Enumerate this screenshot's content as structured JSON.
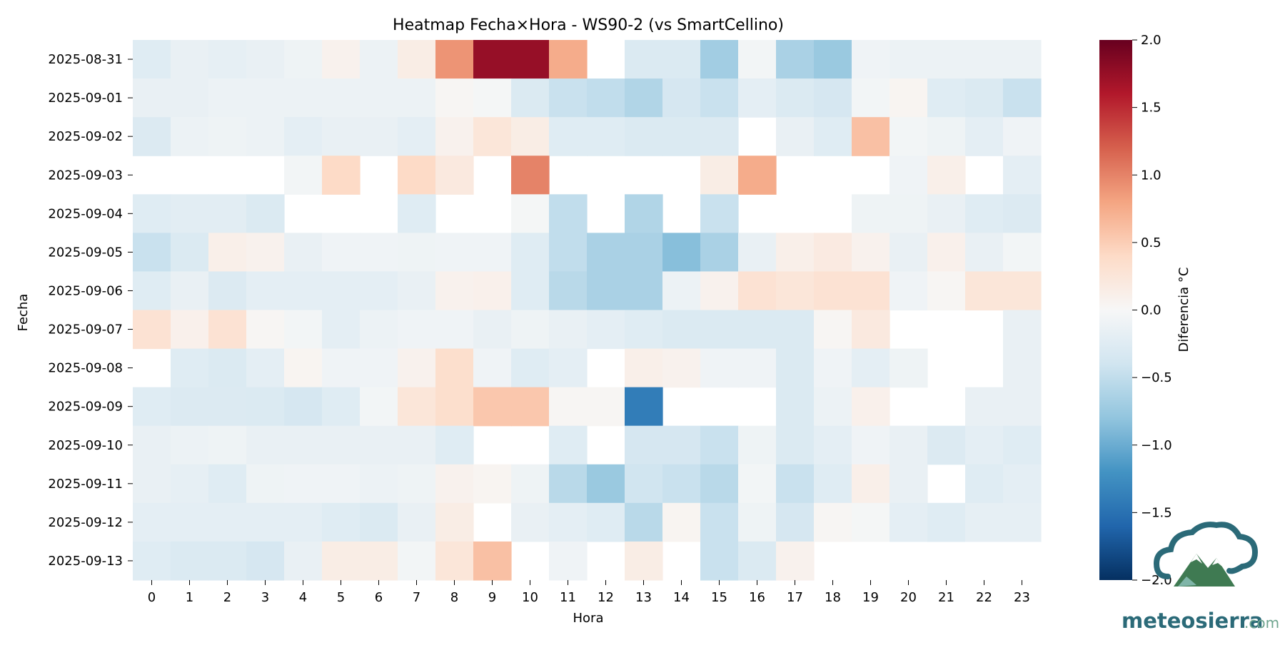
{
  "chart_data": {
    "type": "heatmap",
    "title": "Heatmap Fecha×Hora - WS90-2 (vs SmartCellino)",
    "xlabel": "Hora",
    "ylabel": "Fecha",
    "x_categories": [
      "0",
      "1",
      "2",
      "3",
      "4",
      "5",
      "6",
      "7",
      "8",
      "9",
      "10",
      "11",
      "12",
      "13",
      "14",
      "15",
      "16",
      "17",
      "18",
      "19",
      "20",
      "21",
      "22",
      "23"
    ],
    "y_categories": [
      "2025-08-31",
      "2025-09-01",
      "2025-09-02",
      "2025-09-03",
      "2025-09-04",
      "2025-09-05",
      "2025-09-06",
      "2025-09-07",
      "2025-09-08",
      "2025-09-09",
      "2025-09-10",
      "2025-09-11",
      "2025-09-12",
      "2025-09-13"
    ],
    "values": [
      [
        -0.25,
        -0.15,
        -0.18,
        -0.15,
        -0.1,
        0.08,
        -0.12,
        0.15,
        0.9,
        1.75,
        1.75,
        0.75,
        null,
        -0.3,
        -0.3,
        -0.7,
        -0.05,
        -0.65,
        -0.75,
        -0.08,
        -0.12,
        -0.12,
        -0.12,
        -0.12
      ],
      [
        -0.15,
        -0.15,
        -0.12,
        -0.12,
        -0.12,
        -0.12,
        -0.12,
        -0.12,
        0.03,
        -0.03,
        -0.3,
        -0.45,
        -0.5,
        -0.6,
        -0.35,
        -0.45,
        -0.2,
        -0.3,
        -0.35,
        -0.05,
        0.05,
        -0.25,
        -0.3,
        -0.45
      ],
      [
        -0.28,
        -0.12,
        -0.1,
        -0.12,
        -0.2,
        -0.15,
        -0.15,
        -0.2,
        0.08,
        0.25,
        0.15,
        -0.25,
        -0.25,
        -0.3,
        -0.3,
        -0.28,
        null,
        -0.15,
        -0.25,
        0.6,
        -0.05,
        -0.1,
        -0.2,
        -0.08
      ],
      [
        null,
        null,
        null,
        null,
        -0.05,
        0.4,
        null,
        0.4,
        0.2,
        null,
        1.0,
        null,
        null,
        null,
        null,
        0.15,
        0.75,
        null,
        null,
        null,
        -0.08,
        0.12,
        null,
        -0.2
      ],
      [
        -0.25,
        -0.22,
        -0.22,
        -0.3,
        null,
        null,
        null,
        -0.25,
        null,
        null,
        -0.03,
        -0.5,
        null,
        -0.6,
        null,
        -0.45,
        null,
        null,
        null,
        -0.1,
        -0.1,
        -0.15,
        -0.25,
        -0.28
      ],
      [
        -0.45,
        -0.3,
        0.12,
        0.08,
        -0.15,
        -0.08,
        -0.08,
        -0.1,
        -0.08,
        -0.08,
        -0.25,
        -0.5,
        -0.65,
        -0.65,
        -0.85,
        -0.65,
        -0.15,
        0.12,
        0.18,
        0.08,
        -0.15,
        0.1,
        -0.15,
        -0.05
      ],
      [
        -0.25,
        -0.15,
        -0.28,
        -0.2,
        -0.2,
        -0.2,
        -0.2,
        -0.15,
        0.08,
        0.1,
        -0.25,
        -0.55,
        -0.65,
        -0.65,
        -0.12,
        0.08,
        0.3,
        0.25,
        0.3,
        0.3,
        -0.08,
        0.03,
        0.25,
        0.25
      ],
      [
        0.3,
        0.1,
        0.3,
        0.03,
        -0.05,
        -0.2,
        -0.12,
        -0.08,
        -0.08,
        -0.15,
        -0.1,
        -0.15,
        -0.2,
        -0.25,
        -0.3,
        -0.3,
        -0.3,
        -0.3,
        0.03,
        0.2,
        null,
        null,
        null,
        -0.15
      ],
      [
        null,
        -0.25,
        -0.3,
        -0.2,
        0.05,
        -0.08,
        -0.08,
        0.08,
        0.35,
        -0.08,
        -0.25,
        -0.2,
        null,
        0.12,
        0.08,
        -0.08,
        -0.08,
        -0.3,
        -0.08,
        -0.2,
        -0.1,
        null,
        null,
        -0.15
      ],
      [
        -0.25,
        -0.28,
        -0.28,
        -0.3,
        -0.35,
        -0.25,
        -0.05,
        0.25,
        0.35,
        0.55,
        0.55,
        0.03,
        0.03,
        -1.4,
        null,
        null,
        null,
        -0.3,
        -0.12,
        0.1,
        null,
        null,
        -0.15,
        -0.15
      ],
      [
        -0.15,
        -0.12,
        -0.1,
        -0.15,
        -0.15,
        -0.15,
        -0.15,
        -0.15,
        -0.25,
        null,
        null,
        -0.25,
        null,
        -0.35,
        -0.35,
        -0.45,
        -0.1,
        -0.3,
        -0.2,
        -0.08,
        -0.15,
        -0.28,
        -0.2,
        -0.25
      ],
      [
        -0.15,
        -0.18,
        -0.25,
        -0.1,
        -0.08,
        -0.08,
        -0.12,
        -0.1,
        0.08,
        0.05,
        -0.1,
        -0.55,
        -0.75,
        -0.4,
        -0.45,
        -0.55,
        -0.05,
        -0.45,
        -0.25,
        0.12,
        -0.15,
        null,
        -0.25,
        -0.2
      ],
      [
        -0.2,
        -0.2,
        -0.2,
        -0.2,
        -0.2,
        -0.25,
        -0.3,
        -0.15,
        0.15,
        null,
        -0.15,
        -0.2,
        -0.25,
        -0.55,
        0.05,
        -0.45,
        -0.1,
        -0.35,
        0.03,
        -0.03,
        -0.2,
        -0.25,
        -0.18,
        -0.18
      ],
      [
        -0.25,
        -0.3,
        -0.3,
        -0.35,
        -0.15,
        0.15,
        0.15,
        -0.05,
        0.25,
        0.6,
        null,
        -0.08,
        null,
        0.15,
        null,
        -0.45,
        -0.3,
        0.08,
        null,
        null,
        null,
        null,
        null,
        null
      ]
    ],
    "colorbar": {
      "label": "Diferencia °C",
      "min": -2.0,
      "max": 2.0,
      "ticks": [
        "−2.0",
        "−1.5",
        "−1.0",
        "−0.5",
        "0.0",
        "0.5",
        "1.0",
        "1.5",
        "2.0"
      ],
      "tick_values": [
        -2.0,
        -1.5,
        -1.0,
        -0.5,
        0.0,
        0.5,
        1.0,
        1.5,
        2.0
      ],
      "colormap": "RdBu_r"
    },
    "grid": false
  },
  "colors": {
    "background": "#ffffff",
    "logo_dark": "#2b6a78",
    "logo_green": "#3f7a52",
    "logo_light": "#7fb5a8"
  },
  "logo": {
    "brand": "meteosierra",
    "suffix": ".com"
  }
}
